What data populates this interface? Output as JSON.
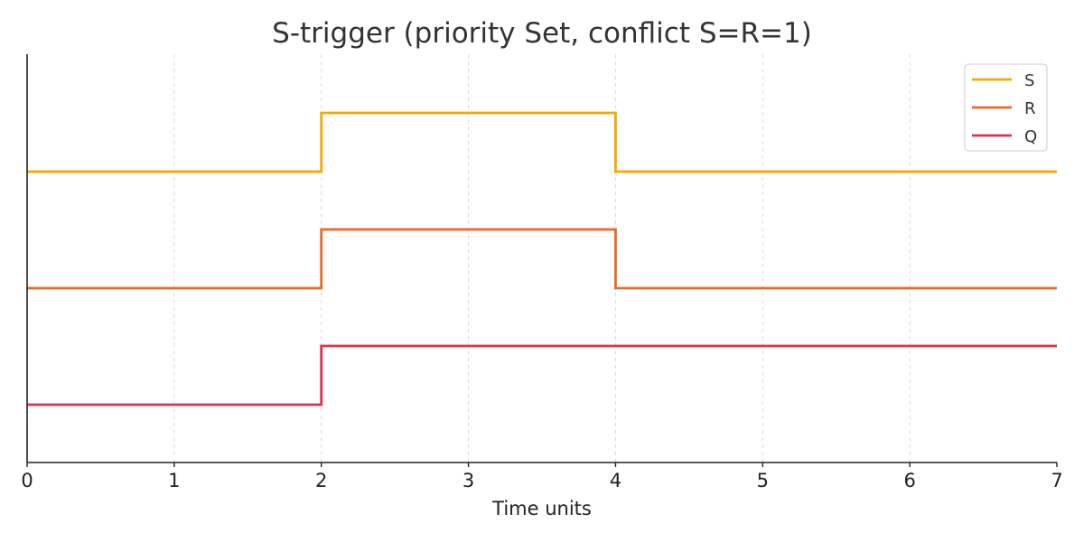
{
  "chart_data": {
    "type": "line",
    "step": "post",
    "title": "S-trigger (priority Set, conflict S=R=1)",
    "xlabel": "Time units",
    "ylabel": "",
    "xlim": [
      0,
      7
    ],
    "x_ticks": [
      0,
      1,
      2,
      3,
      4,
      5,
      6,
      7
    ],
    "grid": "x-dashed",
    "legend_position": "top-right",
    "series": [
      {
        "name": "S",
        "color": "#f2a900",
        "level": 2,
        "x": [
          0,
          2,
          4,
          7
        ],
        "values": [
          0,
          1,
          0,
          0
        ]
      },
      {
        "name": "R",
        "color": "#ea6a23",
        "level": 1,
        "x": [
          0,
          2,
          4,
          7
        ],
        "values": [
          0,
          1,
          0,
          0
        ]
      },
      {
        "name": "Q",
        "color": "#e0304e",
        "level": 0,
        "x": [
          0,
          2,
          4,
          7
        ],
        "values": [
          0,
          1,
          1,
          1
        ]
      }
    ]
  }
}
